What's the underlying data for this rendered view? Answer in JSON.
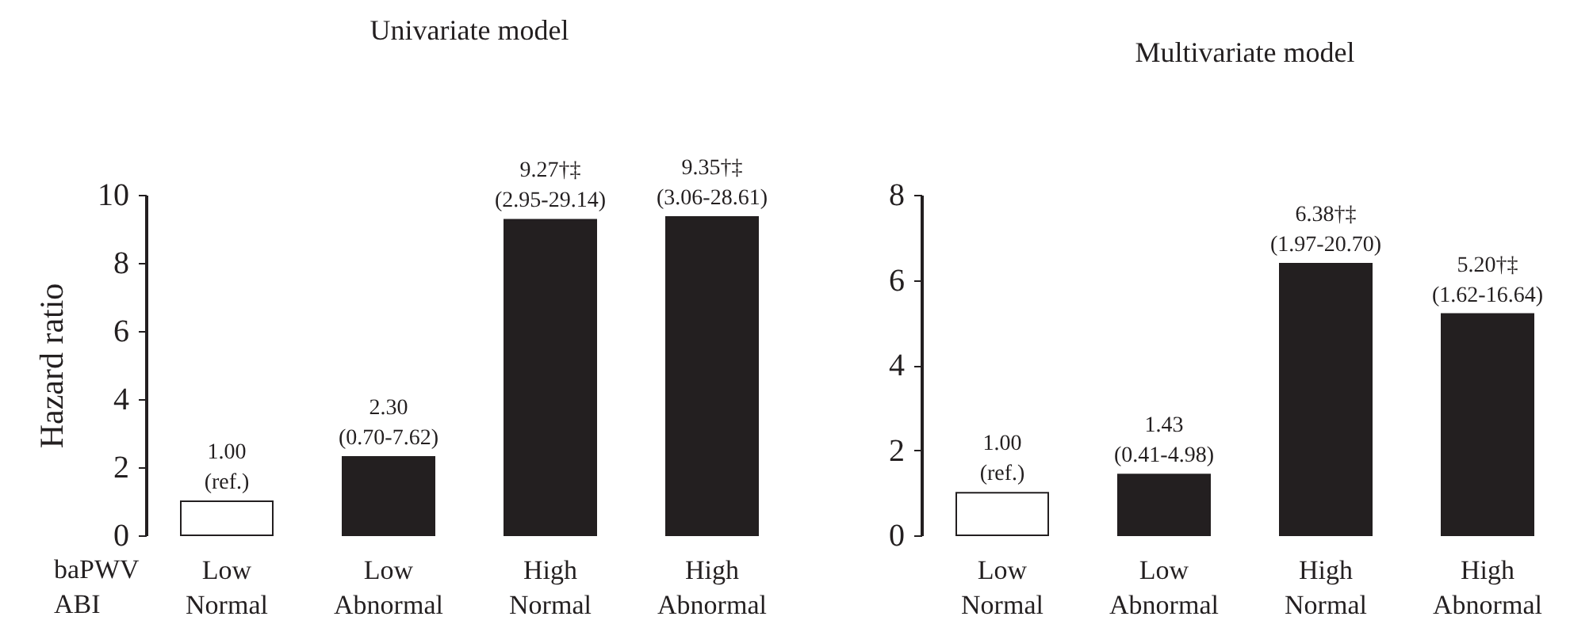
{
  "chart_data": [
    {
      "type": "bar",
      "title": "Univariate model",
      "ylabel": "Hazard ratio",
      "categories": [
        "Low\nNormal",
        "Low\nAbnormal",
        "High\nNormal",
        "High\nAbnormal"
      ],
      "values": [
        1.0,
        2.3,
        9.27,
        9.35
      ],
      "colors": [
        "#ffffff",
        "#231f20",
        "#231f20",
        "#231f20"
      ],
      "value_labels": [
        "1.00\n(ref.)",
        "2.30\n(0.70-7.62)",
        "9.27†‡\n(2.95-29.14)",
        "9.35†‡\n(3.06-28.61)"
      ],
      "ylim": [
        0,
        10
      ],
      "yticks": [
        0,
        2,
        4,
        6,
        8,
        10
      ],
      "grid": false,
      "annotations": [
        "baPWV",
        "ABI"
      ]
    },
    {
      "type": "bar",
      "title": "Multivariate model",
      "categories": [
        "Low\nNormal",
        "Low\nAbnormal",
        "High\nNormal",
        "High\nAbnormal"
      ],
      "values": [
        1.0,
        1.43,
        6.38,
        5.2
      ],
      "colors": [
        "#ffffff",
        "#231f20",
        "#231f20",
        "#231f20"
      ],
      "value_labels": [
        "1.00\n(ref.)",
        "1.43\n(0.41-4.98)",
        "6.38†‡\n(1.97-20.70)",
        "5.20†‡\n(1.62-16.64)"
      ],
      "ylim": [
        0,
        8
      ],
      "yticks": [
        0,
        2,
        4,
        6,
        8
      ],
      "grid": false
    }
  ]
}
